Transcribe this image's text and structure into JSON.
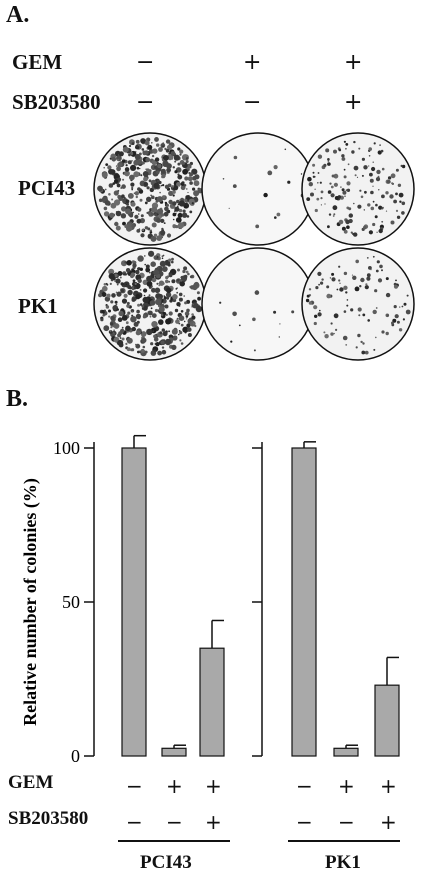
{
  "panel_a": {
    "label": "A.",
    "treatment_rows": [
      {
        "label": "GEM",
        "signs": [
          "−",
          "+",
          "+"
        ]
      },
      {
        "label": "SB203580",
        "signs": [
          "−",
          "−",
          "+"
        ]
      }
    ],
    "cell_lines": [
      "PCI43",
      "PK1"
    ],
    "colony_density": [
      [
        1.0,
        0.03,
        0.35
      ],
      [
        1.0,
        0.02,
        0.23
      ]
    ]
  },
  "panel_b": {
    "label": "B.",
    "treatment_rows": [
      {
        "label": "GEM",
        "signs": [
          "−",
          "+",
          "+",
          "−",
          "+",
          "+"
        ]
      },
      {
        "label": "SB203580",
        "signs": [
          "−",
          "−",
          "+",
          "−",
          "−",
          "+"
        ]
      }
    ],
    "group_labels": [
      "PCI43",
      "PK1"
    ]
  },
  "chart_data": {
    "type": "bar",
    "ylabel": "Relative number of colonies (%)",
    "ylim": [
      0,
      100
    ],
    "yticks": [
      0,
      50,
      100
    ],
    "groups": [
      "PCI43",
      "PK1"
    ],
    "series": [
      {
        "values": [
          100,
          2.5,
          35
        ],
        "errors": [
          4,
          1,
          9
        ]
      },
      {
        "values": [
          100,
          2.5,
          23
        ],
        "errors": [
          2,
          1,
          9
        ]
      }
    ],
    "bar_color": "#a9a9a9"
  }
}
